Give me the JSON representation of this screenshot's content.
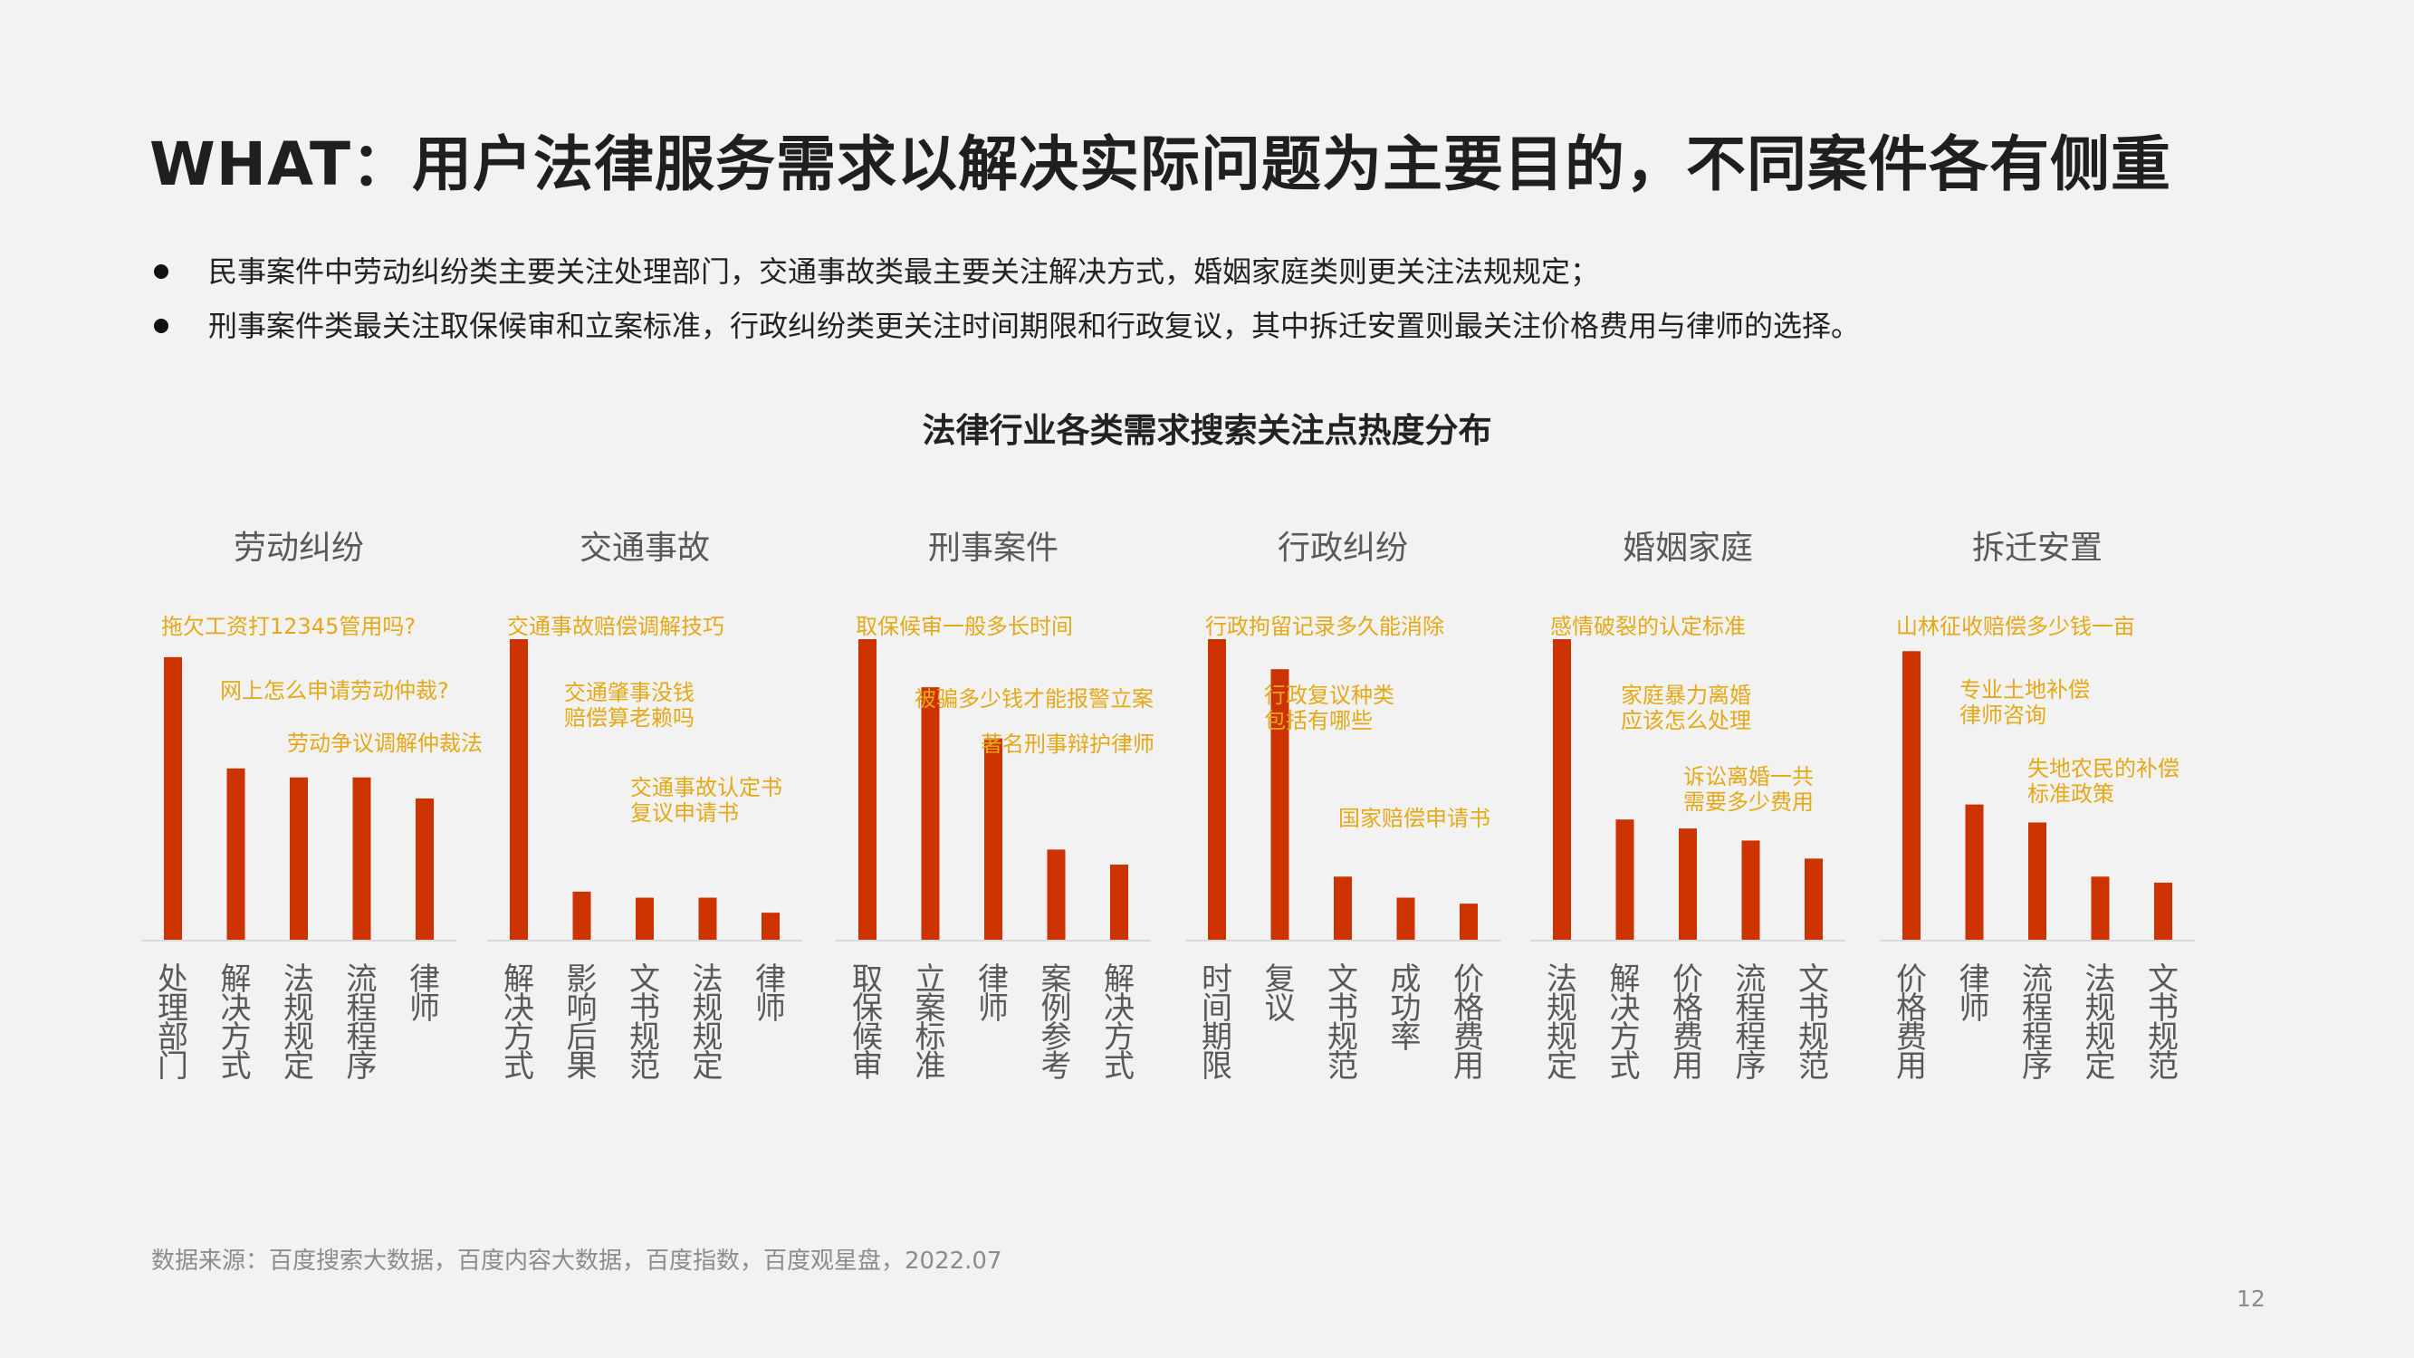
{
  "page": {
    "title": "WHAT：用户法律服务需求以解决实际问题为主要目的，不同案件各有侧重",
    "bullets": [
      "民事案件中劳动纠纷类主要关注处理部门，交通事故类最主要关注解决方式，婚姻家庭类则更关注法规规定；",
      "刑事案件类最关注取保候审和立案标准，行政纠纷类更关注时间期限和行政复议，其中拆迁安置则最关注价格费用与律师的选择。"
    ],
    "source": "数据来源：百度搜索大数据，百度内容大数据，百度指数，百度观星盘，2022.07",
    "page_number": "12"
  },
  "colors": {
    "bar": "#cc3300",
    "annotation": "#e6a817",
    "group_title": "#595959",
    "category_label": "#595959",
    "baseline": "#d9d9d9"
  },
  "chart_data": {
    "type": "bar",
    "title": "法律行业各类需求搜索关注点热度分布",
    "value_axis_shown": false,
    "ylim": [
      0,
      100
    ],
    "groups": [
      {
        "name": "劳动纠纷",
        "categories": [
          "处理部门",
          "解决方式",
          "法规规定",
          "流程程序",
          "律师"
        ],
        "values": [
          94,
          57,
          54,
          54,
          47
        ],
        "annotations": [
          {
            "bar": 0,
            "lines": [
              "拖欠工资打12345管用吗?"
            ]
          },
          {
            "bar": 1,
            "lines": [
              "网上怎么申请劳动仲裁?"
            ]
          },
          {
            "bar": 2,
            "lines": [
              "劳动争议调解仲裁法"
            ]
          }
        ]
      },
      {
        "name": "交通事故",
        "categories": [
          "解决方式",
          "影响后果",
          "文书规范",
          "法规规定",
          "律师"
        ],
        "values": [
          100,
          16,
          14,
          14,
          9
        ],
        "annotations": [
          {
            "bar": 0,
            "lines": [
              "交通事故赔偿调解技巧"
            ]
          },
          {
            "bar": 1,
            "lines": [
              "交通肇事没钱",
              "赔偿算老赖吗"
            ]
          },
          {
            "bar": 2,
            "lines": [
              "交通事故认定书",
              "复议申请书"
            ]
          }
        ]
      },
      {
        "name": "刑事案件",
        "categories": [
          "取保候审",
          "立案标准",
          "律师",
          "案例参考",
          "解决方式"
        ],
        "values": [
          100,
          84,
          67,
          30,
          25
        ],
        "annotations": [
          {
            "bar": 0,
            "lines": [
              "取保候审一般多长时间"
            ]
          },
          {
            "bar": 1,
            "lines": [
              "被骗多少钱才能报警立案"
            ]
          },
          {
            "bar": 2,
            "lines": [
              "著名刑事辩护律师"
            ]
          }
        ]
      },
      {
        "name": "行政纠纷",
        "categories": [
          "时间期限",
          "复议",
          "文书规范",
          "成功率",
          "价格费用"
        ],
        "values": [
          100,
          90,
          21,
          14,
          12
        ],
        "annotations": [
          {
            "bar": 0,
            "lines": [
              "行政拘留记录多久能消除"
            ]
          },
          {
            "bar": 1,
            "lines": [
              "行政复议种类",
              "包括有哪些"
            ]
          },
          {
            "bar": 2,
            "lines": [
              "国家赔偿申请书"
            ]
          }
        ]
      },
      {
        "name": "婚姻家庭",
        "categories": [
          "法规规定",
          "解决方式",
          "价格费用",
          "流程程序",
          "文书规范"
        ],
        "values": [
          100,
          40,
          37,
          33,
          27
        ],
        "annotations": [
          {
            "bar": 0,
            "lines": [
              "感情破裂的认定标准"
            ]
          },
          {
            "bar": 1,
            "lines": [
              "家庭暴力离婚",
              "应该怎么处理"
            ]
          },
          {
            "bar": 2,
            "lines": [
              "诉讼离婚一共",
              "需要多少费用"
            ]
          }
        ]
      },
      {
        "name": "拆迁安置",
        "categories": [
          "价格费用",
          "律师",
          "流程程序",
          "法规规定",
          "文书规范"
        ],
        "values": [
          96,
          45,
          39,
          21,
          19
        ],
        "annotations": [
          {
            "bar": 0,
            "lines": [
              "山林征收赔偿多少钱一亩"
            ]
          },
          {
            "bar": 1,
            "lines": [
              "专业土地补偿",
              "律师咨询"
            ]
          },
          {
            "bar": 2,
            "lines": [
              "失地农民的补偿",
              "标准政策"
            ]
          }
        ]
      }
    ]
  }
}
